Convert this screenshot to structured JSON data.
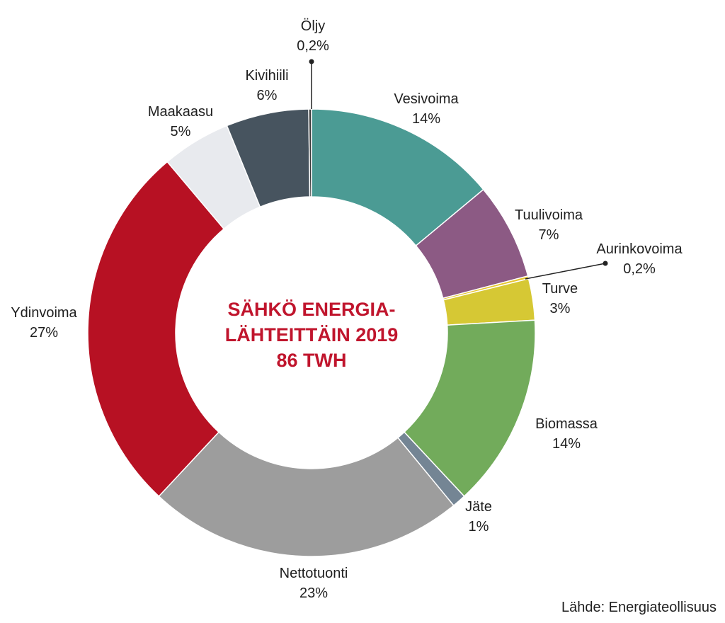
{
  "chart_data": {
    "type": "pie",
    "title_lines": [
      "SÄHKÖ ENERGIA-",
      "LÄHTEITTÄIN 2019",
      "86 TWH"
    ],
    "source": "Lähde: Energiateollisuus",
    "slices": [
      {
        "label": "Vesivoima",
        "value": 14,
        "value_text": "14%",
        "color": "#4b9b94"
      },
      {
        "label": "Tuulivoima",
        "value": 7,
        "value_text": "7%",
        "color": "#8c5a84"
      },
      {
        "label": "Aurinkovoima",
        "value": 0.2,
        "value_text": "0,2%",
        "color": "#e6c62f"
      },
      {
        "label": "Turve",
        "value": 3,
        "value_text": "3%",
        "color": "#d6c834"
      },
      {
        "label": "Biomassa",
        "value": 14,
        "value_text": "14%",
        "color": "#72ab5b"
      },
      {
        "label": "Jäte",
        "value": 1,
        "value_text": "1%",
        "color": "#748594"
      },
      {
        "label": "Nettotuonti",
        "value": 23,
        "value_text": "23%",
        "color": "#9d9d9d"
      },
      {
        "label": "Ydinvoima",
        "value": 27,
        "value_text": "27%",
        "color": "#b71123"
      },
      {
        "label": "Maakaasu",
        "value": 5,
        "value_text": "5%",
        "color": "#e8eaee"
      },
      {
        "label": "Kivihiili",
        "value": 6,
        "value_text": "6%",
        "color": "#47545f"
      },
      {
        "label": "Öljy",
        "value": 0.2,
        "value_text": "0,2%",
        "color": "#3a3a3a"
      }
    ]
  }
}
